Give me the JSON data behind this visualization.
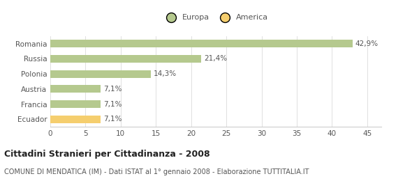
{
  "categories": [
    "Romania",
    "Russia",
    "Polonia",
    "Austria",
    "Francia",
    "Ecuador"
  ],
  "values": [
    42.9,
    21.4,
    14.3,
    7.1,
    7.1,
    7.1
  ],
  "labels": [
    "42,9%",
    "21,4%",
    "14,3%",
    "7,1%",
    "7,1%",
    "7,1%"
  ],
  "colors": [
    "#b5c98e",
    "#b5c98e",
    "#b5c98e",
    "#b5c98e",
    "#b5c98e",
    "#f5ce6e"
  ],
  "legend_items": [
    {
      "label": "Europa",
      "color": "#b5c98e"
    },
    {
      "label": "America",
      "color": "#f5ce6e"
    }
  ],
  "xlim": [
    0,
    47
  ],
  "xticks": [
    0,
    5,
    10,
    15,
    20,
    25,
    30,
    35,
    40,
    45
  ],
  "title": "Cittadini Stranieri per Cittadinanza - 2008",
  "subtitle": "COMUNE DI MENDATICA (IM) - Dati ISTAT al 1° gennaio 2008 - Elaborazione TUTTITALIA.IT",
  "background_color": "#ffffff",
  "bar_height": 0.5,
  "title_fontsize": 9,
  "subtitle_fontsize": 7,
  "label_fontsize": 7.5,
  "tick_fontsize": 7.5,
  "legend_fontsize": 8
}
